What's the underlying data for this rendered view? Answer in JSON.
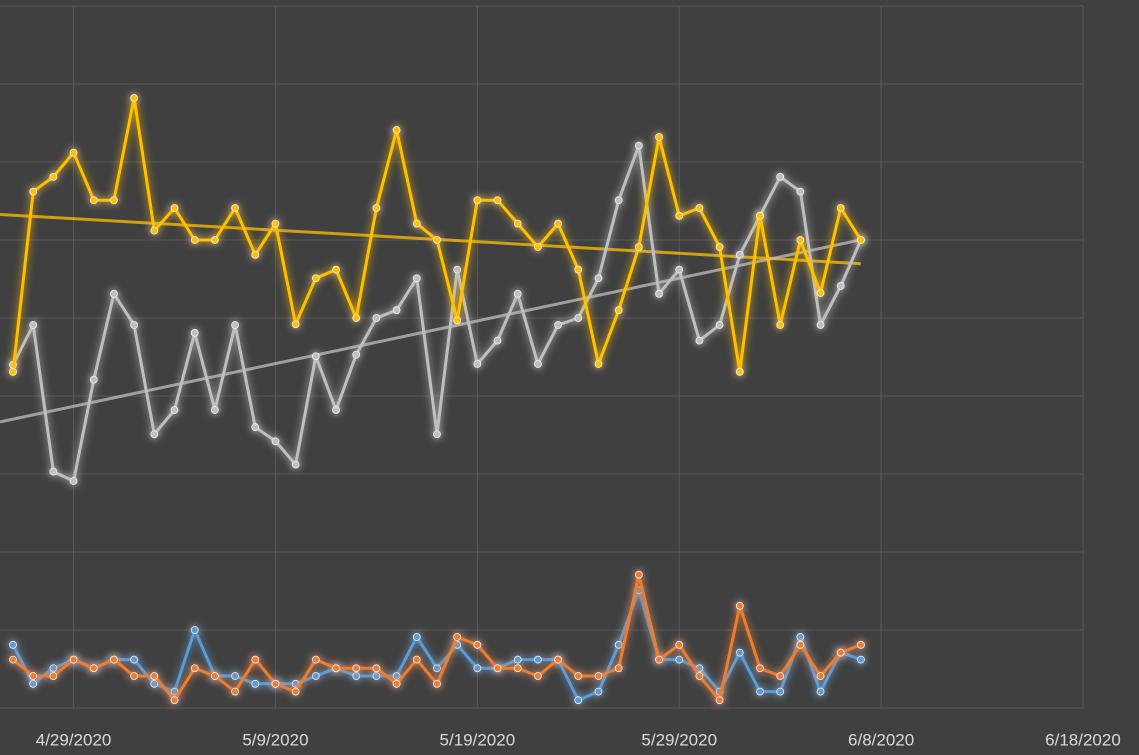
{
  "chart_data": {
    "type": "line",
    "x": [
      "4/26/2020",
      "4/27/2020",
      "4/28/2020",
      "4/29/2020",
      "4/30/2020",
      "5/1/2020",
      "5/2/2020",
      "5/3/2020",
      "5/4/2020",
      "5/5/2020",
      "5/6/2020",
      "5/7/2020",
      "5/8/2020",
      "5/9/2020",
      "5/10/2020",
      "5/11/2020",
      "5/12/2020",
      "5/13/2020",
      "5/14/2020",
      "5/15/2020",
      "5/16/2020",
      "5/17/2020",
      "5/18/2020",
      "5/19/2020",
      "5/20/2020",
      "5/21/2020",
      "5/22/2020",
      "5/23/2020",
      "5/24/2020",
      "5/25/2020",
      "5/26/2020",
      "5/27/2020",
      "5/28/2020",
      "5/29/2020",
      "5/30/2020",
      "5/31/2020",
      "6/1/2020",
      "6/2/2020",
      "6/3/2020",
      "6/4/2020",
      "6/5/2020",
      "6/6/2020",
      "6/7/2020"
    ],
    "series": [
      {
        "color": "#ffc000",
        "trendline": true,
        "values": [
          4.31,
          6.62,
          6.81,
          7.12,
          6.51,
          6.51,
          7.82,
          6.12,
          6.41,
          6.0,
          6.0,
          6.41,
          5.81,
          6.21,
          4.92,
          5.51,
          5.62,
          5.0,
          6.41,
          7.41,
          6.21,
          6.0,
          4.97,
          6.51,
          6.51,
          6.21,
          5.91,
          6.21,
          5.62,
          4.41,
          5.1,
          5.91,
          7.32,
          6.31,
          6.41,
          5.91,
          4.31,
          6.31,
          4.91,
          6.0,
          5.32,
          6.41,
          6.0
        ]
      },
      {
        "color": "#bfbfbf",
        "trendline": true,
        "values": [
          4.4,
          4.91,
          3.03,
          2.91,
          4.21,
          5.31,
          4.91,
          3.51,
          3.82,
          4.81,
          3.82,
          4.91,
          3.6,
          3.42,
          3.12,
          4.51,
          3.82,
          4.53,
          5.0,
          5.1,
          5.51,
          3.51,
          5.62,
          4.41,
          4.71,
          5.31,
          4.41,
          4.91,
          5.0,
          5.51,
          6.51,
          7.21,
          5.31,
          5.62,
          4.71,
          4.91,
          5.81,
          6.31,
          6.81,
          6.62,
          4.91,
          5.41,
          6.0
        ]
      },
      {
        "color": "#5b9bd5",
        "values": [
          0.81,
          0.31,
          0.51,
          0.62,
          0.51,
          0.62,
          0.62,
          0.31,
          0.21,
          1.0,
          0.41,
          0.41,
          0.31,
          0.31,
          0.31,
          0.41,
          0.51,
          0.41,
          0.41,
          0.41,
          0.91,
          0.51,
          0.81,
          0.51,
          0.51,
          0.62,
          0.62,
          0.62,
          0.1,
          0.21,
          0.81,
          1.51,
          0.62,
          0.62,
          0.51,
          0.21,
          0.71,
          0.21,
          0.21,
          0.91,
          0.21,
          0.71,
          0.62
        ]
      },
      {
        "color": "#ed7d31",
        "values": [
          0.62,
          0.41,
          0.41,
          0.62,
          0.51,
          0.62,
          0.41,
          0.41,
          0.1,
          0.51,
          0.41,
          0.21,
          0.62,
          0.31,
          0.21,
          0.62,
          0.51,
          0.51,
          0.51,
          0.31,
          0.62,
          0.31,
          0.91,
          0.81,
          0.51,
          0.51,
          0.41,
          0.62,
          0.41,
          0.41,
          0.51,
          1.71,
          0.62,
          0.81,
          0.41,
          0.1,
          1.31,
          0.51,
          0.41,
          0.81,
          0.41,
          0.71,
          0.81
        ]
      }
    ],
    "xlim": [
      "4/26/2020",
      "6/18/2020"
    ],
    "xticks": [
      "4/29/2020",
      "5/9/2020",
      "5/19/2020",
      "5/29/2020",
      "6/8/2020",
      "6/18/2020"
    ],
    "ylim": [
      0,
      9
    ],
    "yticks": [
      0,
      1,
      2,
      3,
      4,
      5,
      6,
      7,
      8,
      9
    ],
    "grid": true
  }
}
